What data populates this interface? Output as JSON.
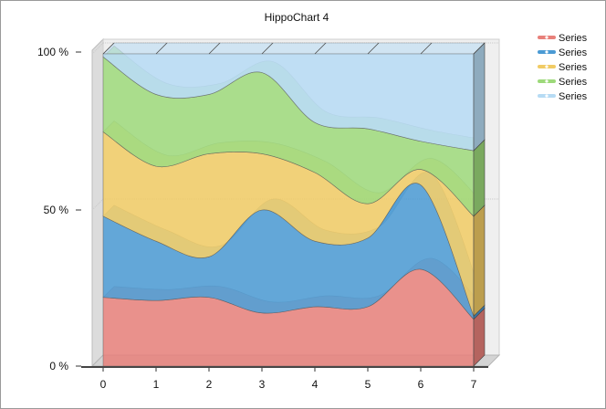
{
  "chart_data": {
    "type": "area",
    "stacked": "percent",
    "title": "HippoChart 4",
    "x": [
      0,
      1,
      2,
      3,
      4,
      5,
      6,
      7
    ],
    "x_tick_labels": [
      "0",
      "1",
      "2",
      "3",
      "4",
      "5",
      "6",
      "7"
    ],
    "y_tick_labels": [
      "0 %",
      "50 %",
      "100 %"
    ],
    "ylim": [
      0,
      100
    ],
    "legend_position": "top-right",
    "grid": true,
    "three_d": true,
    "series": [
      {
        "name": "Series",
        "color": "#e8807a",
        "cumulative_top": [
          22,
          21,
          22,
          17,
          19,
          19,
          31,
          15
        ]
      },
      {
        "name": "Series",
        "color": "#4a9ad4",
        "cumulative_top": [
          48,
          40,
          35,
          50,
          40,
          41,
          58,
          16
        ]
      },
      {
        "name": "Series",
        "color": "#f1cb64",
        "cumulative_top": [
          75,
          64,
          68,
          68,
          62,
          52,
          63,
          48
        ]
      },
      {
        "name": "Series",
        "color": "#9dd97a",
        "cumulative_top": [
          99,
          87,
          87,
          94,
          78,
          76,
          72,
          69
        ]
      },
      {
        "name": "Series",
        "color": "#b6dbf4",
        "cumulative_top": [
          100,
          100,
          100,
          100,
          100,
          100,
          100,
          100
        ]
      }
    ]
  }
}
